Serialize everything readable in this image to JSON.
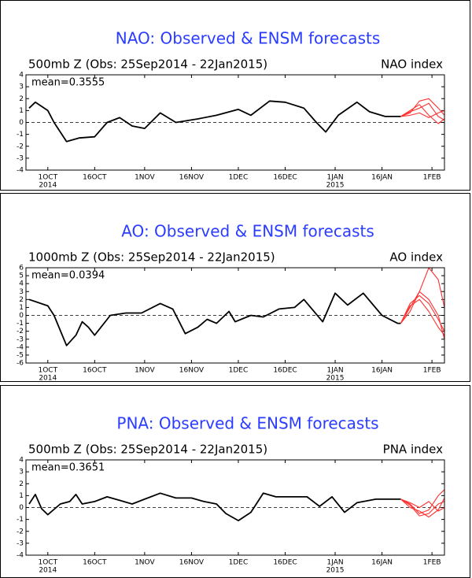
{
  "chart_data": [
    {
      "type": "line",
      "title": "NAO: Observed & ENSM forecasts",
      "subtitle": "500mb Z (Obs: 25Sep2014 - 22Jan2015)",
      "index_label": "NAO index",
      "annotation": "mean=0.3555",
      "xlim": [
        "2014-09-24",
        "2015-02-05"
      ],
      "ylim": [
        -4,
        4
      ],
      "yticks": [
        -4,
        -3,
        -2,
        -1,
        0,
        1,
        2,
        3,
        4
      ],
      "reference_line": 0,
      "xticks": [
        {
          "value": "2014-10-01",
          "label": "1OCT",
          "year": "2014"
        },
        {
          "value": "2014-10-16",
          "label": "16OCT"
        },
        {
          "value": "2014-11-01",
          "label": "1NOV"
        },
        {
          "value": "2014-11-16",
          "label": "16NOV"
        },
        {
          "value": "2014-12-01",
          "label": "1DEC"
        },
        {
          "value": "2014-12-16",
          "label": "16DEC"
        },
        {
          "value": "2015-01-01",
          "label": "1JAN",
          "year": "2015"
        },
        {
          "value": "2015-01-16",
          "label": "16JAN"
        },
        {
          "value": "2015-02-01",
          "label": "1FEB"
        }
      ],
      "series": [
        {
          "color": "#000000",
          "x": [
            "2014-09-25",
            "2014-09-27",
            "2014-10-01",
            "2014-10-03",
            "2014-10-07",
            "2014-10-11",
            "2014-10-16",
            "2014-10-20",
            "2014-10-24",
            "2014-10-28",
            "2014-11-01",
            "2014-11-06",
            "2014-11-11",
            "2014-11-18",
            "2014-11-24",
            "2014-12-01",
            "2014-12-05",
            "2014-12-11",
            "2014-12-16",
            "2014-12-22",
            "2014-12-26",
            "2014-12-29",
            "2015-01-02",
            "2015-01-08",
            "2015-01-12",
            "2015-01-17",
            "2015-01-22"
          ],
          "values": [
            1.2,
            1.7,
            1.0,
            0.0,
            -1.6,
            -1.3,
            -1.2,
            0.0,
            0.4,
            -0.3,
            -0.5,
            0.8,
            0.0,
            0.3,
            0.6,
            1.1,
            0.6,
            1.8,
            1.7,
            1.2,
            0.0,
            -0.8,
            0.6,
            1.7,
            0.9,
            0.5,
            0.5
          ]
        },
        {
          "color": "#ff3030",
          "x": [
            "2015-01-22",
            "2015-01-25",
            "2015-01-28",
            "2015-01-31",
            "2015-02-03",
            "2015-02-05"
          ],
          "values": [
            0.5,
            0.8,
            1.8,
            2.0,
            1.2,
            0.6
          ]
        },
        {
          "color": "#ff3030",
          "x": [
            "2015-01-22",
            "2015-01-25",
            "2015-01-28",
            "2015-01-31",
            "2015-02-03",
            "2015-02-05"
          ],
          "values": [
            0.5,
            0.9,
            1.2,
            1.6,
            0.5,
            0.2
          ]
        },
        {
          "color": "#ff3030",
          "x": [
            "2015-01-22",
            "2015-01-25",
            "2015-01-28",
            "2015-01-31",
            "2015-02-03",
            "2015-02-05"
          ],
          "values": [
            0.5,
            0.6,
            0.8,
            0.4,
            0.8,
            1.0
          ]
        },
        {
          "color": "#ff3030",
          "x": [
            "2015-01-22",
            "2015-01-25",
            "2015-01-28",
            "2015-01-31",
            "2015-02-03",
            "2015-02-05"
          ],
          "values": [
            0.5,
            1.0,
            1.5,
            0.6,
            -0.1,
            0.3
          ]
        }
      ]
    },
    {
      "type": "line",
      "title": "AO: Observed & ENSM forecasts",
      "subtitle": "1000mb Z (Obs: 25Sep2014 - 22Jan2015)",
      "index_label": "AO index",
      "annotation": "mean=0.0394",
      "xlim": [
        "2014-09-24",
        "2015-02-05"
      ],
      "ylim": [
        -6,
        6
      ],
      "yticks": [
        -6,
        -5,
        -4,
        -3,
        -2,
        -1,
        0,
        1,
        2,
        3,
        4,
        5,
        6
      ],
      "reference_line": 0,
      "xticks": [
        {
          "value": "2014-10-01",
          "label": "1OCT",
          "year": "2014"
        },
        {
          "value": "2014-10-16",
          "label": "16OCT"
        },
        {
          "value": "2014-11-01",
          "label": "1NOV"
        },
        {
          "value": "2014-11-16",
          "label": "16NOV"
        },
        {
          "value": "2014-12-01",
          "label": "1DEC"
        },
        {
          "value": "2014-12-16",
          "label": "16DEC"
        },
        {
          "value": "2015-01-01",
          "label": "1JAN",
          "year": "2015"
        },
        {
          "value": "2015-01-16",
          "label": "16JAN"
        },
        {
          "value": "2015-02-01",
          "label": "1FEB"
        }
      ],
      "series": [
        {
          "color": "#000000",
          "x": [
            "2014-09-25",
            "2014-10-01",
            "2014-10-03",
            "2014-10-07",
            "2014-10-10",
            "2014-10-12",
            "2014-10-14",
            "2014-10-16",
            "2014-10-21",
            "2014-10-26",
            "2014-10-31",
            "2014-11-06",
            "2014-11-10",
            "2014-11-14",
            "2014-11-18",
            "2014-11-21",
            "2014-11-24",
            "2014-11-28",
            "2014-11-30",
            "2014-12-05",
            "2014-12-09",
            "2014-12-14",
            "2014-12-19",
            "2014-12-22",
            "2014-12-28",
            "2015-01-01",
            "2015-01-05",
            "2015-01-10",
            "2015-01-16",
            "2015-01-21",
            "2015-01-22"
          ],
          "values": [
            2.0,
            1.2,
            0.0,
            -3.8,
            -2.5,
            -0.8,
            -1.5,
            -2.5,
            0.0,
            0.3,
            0.3,
            1.5,
            0.8,
            -2.3,
            -1.5,
            -0.5,
            -1.0,
            0.5,
            -0.8,
            0.0,
            -0.2,
            0.8,
            1.0,
            2.0,
            -0.8,
            2.8,
            1.3,
            2.8,
            0.0,
            -1.0,
            -1.0
          ]
        },
        {
          "color": "#ff3030",
          "x": [
            "2015-01-22",
            "2015-01-25",
            "2015-01-28",
            "2015-01-31",
            "2015-02-03",
            "2015-02-05"
          ],
          "values": [
            -1.0,
            1.0,
            3.0,
            6.0,
            4.5,
            1.0
          ]
        },
        {
          "color": "#ff3030",
          "x": [
            "2015-01-22",
            "2015-01-25",
            "2015-01-28",
            "2015-01-31",
            "2015-02-03",
            "2015-02-05"
          ],
          "values": [
            -1.0,
            1.5,
            2.5,
            1.5,
            -0.5,
            -2.0
          ]
        },
        {
          "color": "#ff3030",
          "x": [
            "2015-01-22",
            "2015-01-25",
            "2015-01-28",
            "2015-01-31",
            "2015-02-03",
            "2015-02-05"
          ],
          "values": [
            -1.0,
            0.5,
            3.0,
            2.0,
            0.0,
            -3.0
          ]
        },
        {
          "color": "#ff3030",
          "x": [
            "2015-01-22",
            "2015-01-25",
            "2015-01-28",
            "2015-01-31",
            "2015-02-03",
            "2015-02-05"
          ],
          "values": [
            -1.0,
            1.2,
            2.0,
            0.5,
            -1.5,
            -2.5
          ]
        }
      ]
    },
    {
      "type": "line",
      "title": "PNA: Observed & ENSM forecasts",
      "subtitle": "500mb Z (Obs: 25Sep2014 - 22Jan2015)",
      "index_label": "PNA index",
      "annotation": "mean=0.3651",
      "xlim": [
        "2014-09-24",
        "2015-02-05"
      ],
      "ylim": [
        -4,
        4
      ],
      "yticks": [
        -4,
        -3,
        -2,
        -1,
        0,
        1,
        2,
        3,
        4
      ],
      "reference_line": 0,
      "xticks": [
        {
          "value": "2014-10-01",
          "label": "1OCT",
          "year": "2014"
        },
        {
          "value": "2014-10-16",
          "label": "16OCT"
        },
        {
          "value": "2014-11-01",
          "label": "1NOV"
        },
        {
          "value": "2014-11-16",
          "label": "16NOV"
        },
        {
          "value": "2014-12-01",
          "label": "1DEC"
        },
        {
          "value": "2014-12-16",
          "label": "16DEC"
        },
        {
          "value": "2015-01-01",
          "label": "1JAN",
          "year": "2015"
        },
        {
          "value": "2015-01-16",
          "label": "16JAN"
        },
        {
          "value": "2015-02-01",
          "label": "1FEB"
        }
      ],
      "series": [
        {
          "color": "#000000",
          "x": [
            "2014-09-25",
            "2014-09-27",
            "2014-09-29",
            "2014-10-01",
            "2014-10-05",
            "2014-10-08",
            "2014-10-10",
            "2014-10-12",
            "2014-10-16",
            "2014-10-20",
            "2014-10-24",
            "2014-10-28",
            "2014-10-31",
            "2014-11-06",
            "2014-11-11",
            "2014-11-16",
            "2014-11-20",
            "2014-11-24",
            "2014-11-27",
            "2014-12-01",
            "2014-12-05",
            "2014-12-09",
            "2014-12-13",
            "2014-12-18",
            "2014-12-23",
            "2014-12-27",
            "2014-12-31",
            "2015-01-04",
            "2015-01-08",
            "2015-01-14",
            "2015-01-22"
          ],
          "values": [
            0.3,
            1.1,
            -0.1,
            -0.6,
            0.3,
            0.5,
            1.1,
            0.3,
            0.5,
            0.9,
            0.6,
            0.3,
            0.6,
            1.2,
            0.8,
            0.8,
            0.5,
            0.3,
            -0.5,
            -1.1,
            -0.4,
            1.2,
            0.9,
            0.9,
            0.9,
            0.1,
            0.9,
            -0.4,
            0.4,
            0.7,
            0.7
          ]
        },
        {
          "color": "#ff3030",
          "x": [
            "2015-01-22",
            "2015-01-25",
            "2015-01-28",
            "2015-01-31",
            "2015-02-03",
            "2015-02-05"
          ],
          "values": [
            0.7,
            0.3,
            -0.5,
            -0.2,
            1.0,
            1.5
          ]
        },
        {
          "color": "#ff3030",
          "x": [
            "2015-01-22",
            "2015-01-25",
            "2015-01-28",
            "2015-01-31",
            "2015-02-03",
            "2015-02-05"
          ],
          "values": [
            0.7,
            0.2,
            -0.7,
            -0.5,
            0.3,
            0.5
          ]
        },
        {
          "color": "#ff3030",
          "x": [
            "2015-01-22",
            "2015-01-25",
            "2015-01-28",
            "2015-01-31",
            "2015-02-03",
            "2015-02-05"
          ],
          "values": [
            0.7,
            0.4,
            0.0,
            0.5,
            -0.3,
            0.0
          ]
        },
        {
          "color": "#ff3030",
          "x": [
            "2015-01-22",
            "2015-01-25",
            "2015-01-28",
            "2015-01-31",
            "2015-02-03",
            "2015-02-05"
          ],
          "values": [
            0.7,
            0.0,
            -0.3,
            -0.8,
            -0.2,
            0.8
          ]
        }
      ]
    }
  ]
}
